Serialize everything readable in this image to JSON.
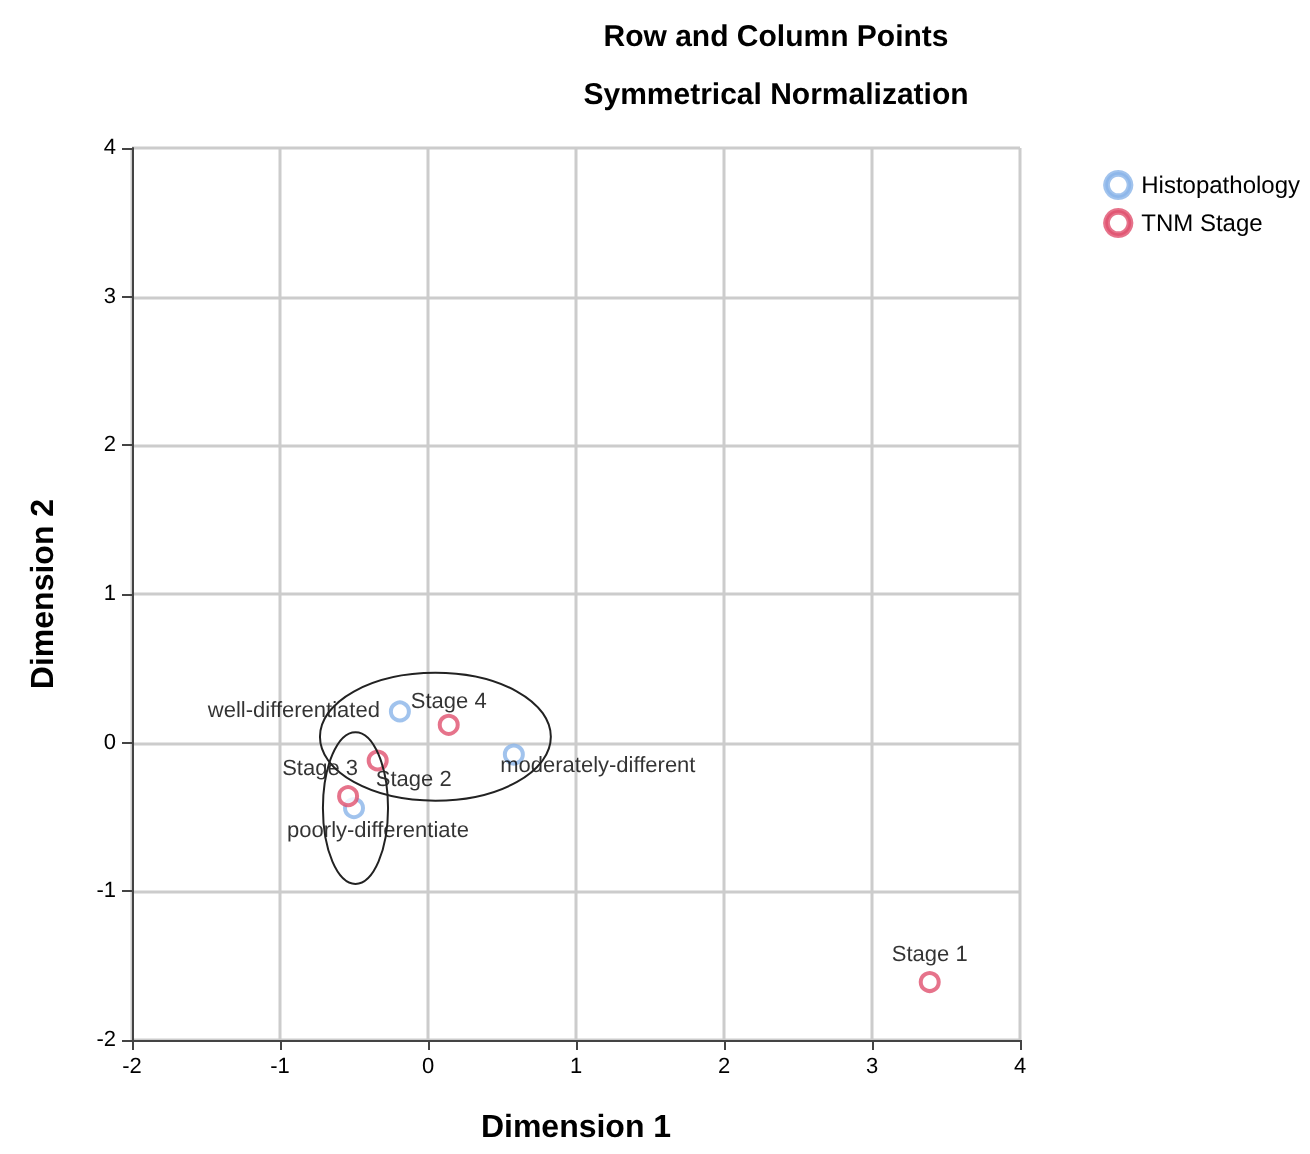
{
  "chart_data": {
    "type": "scatter",
    "title": "Row and Column Points",
    "subtitle": "Symmetrical Normalization",
    "xlabel": "Dimension 1",
    "ylabel": "Dimension 2",
    "series": [
      {
        "name": "Histopathology",
        "color": "#8ab4e8",
        "x": [
          -0.19,
          0.58,
          -0.5
        ],
        "values": [
          0.21,
          -0.08,
          -0.44
        ]
      },
      {
        "name": "TNM Stage",
        "color": "#e0506e",
        "x": [
          3.39,
          -0.34,
          -0.54,
          0.14
        ],
        "values": [
          -1.61,
          -0.12,
          -0.36,
          0.12
        ]
      }
    ],
    "annotations": [
      {
        "text": "well-differentiated",
        "x": -0.19,
        "y": 0.21
      },
      {
        "text": "moderately-different",
        "x": 0.58,
        "y": -0.08
      },
      {
        "text": "poorly-differentiate",
        "x": -0.5,
        "y": -0.44
      },
      {
        "text": "Stage 1",
        "x": 3.39,
        "y": -1.61
      },
      {
        "text": "Stage 2",
        "x": -0.34,
        "y": -0.12
      },
      {
        "text": "Stage 3",
        "x": -0.54,
        "y": -0.36
      },
      {
        "text": "Stage 4",
        "x": 0.14,
        "y": 0.12
      }
    ],
    "xlim": [
      -2,
      4
    ],
    "xticks": [
      -2,
      -1,
      0,
      1,
      2,
      3,
      4
    ],
    "ylim": [
      -2,
      4
    ],
    "yticks": [
      -2,
      -1,
      0,
      1,
      2,
      3,
      4
    ],
    "grid": true,
    "legend": "top right",
    "marker": "circle"
  }
}
